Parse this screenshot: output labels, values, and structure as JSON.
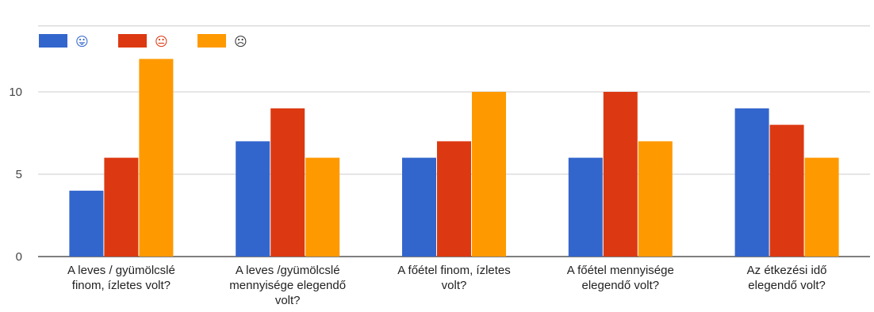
{
  "chart_data": {
    "type": "bar",
    "categories": [
      [
        "A leves / gyümölcslé",
        "finom, ízletes volt?"
      ],
      [
        "A leves /gyümölcslé",
        "mennyisége elegendő",
        "volt?"
      ],
      [
        "A főétel finom, ízletes",
        "volt?"
      ],
      [
        "A főétel mennyisége",
        "elegendő volt?"
      ],
      [
        "Az étkezési idő",
        "elegendő volt?"
      ]
    ],
    "series": [
      {
        "name": "😛",
        "color": "#3366cc",
        "values": [
          4,
          7,
          6,
          6,
          9
        ]
      },
      {
        "name": "😐",
        "color": "#dc3912",
        "values": [
          6,
          9,
          7,
          10,
          8
        ]
      },
      {
        "name": "☹",
        "color": "#ff9900",
        "values": [
          12,
          6,
          10,
          7,
          6
        ]
      }
    ],
    "yticks": [
      0,
      5,
      10
    ],
    "ylim": [
      0,
      14
    ],
    "legend_position": "top-left",
    "grid": true
  }
}
